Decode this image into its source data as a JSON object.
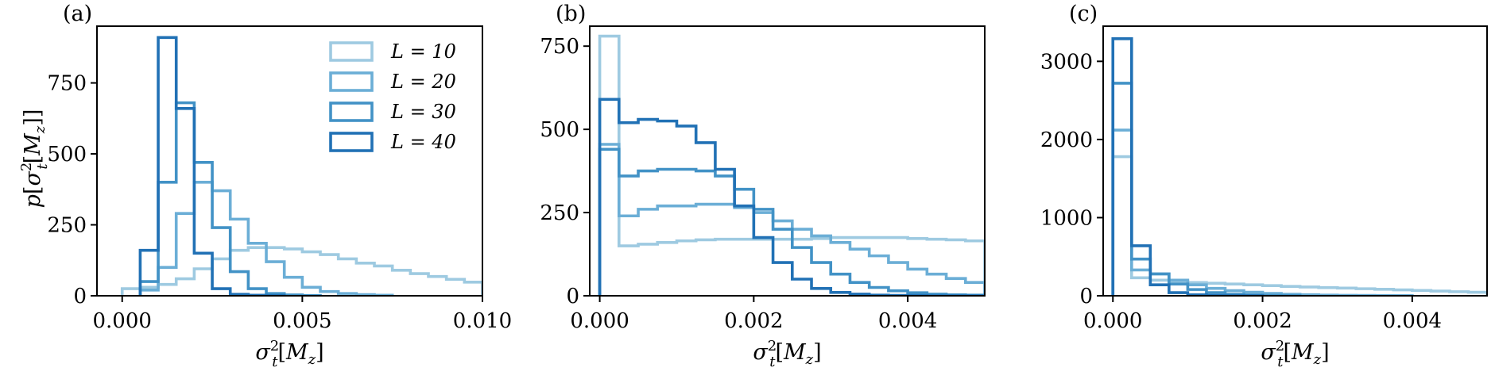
{
  "chart_data": [
    {
      "type": "histogram-step",
      "panel_label": "(a)",
      "xlabel": "σ_t²[M_z]",
      "ylabel": "p[σ_t²[M_z]]",
      "xlim": [
        -0.0007,
        0.01
      ],
      "ylim": [
        0,
        950
      ],
      "xticks": [
        0.0,
        0.005,
        0.01
      ],
      "xtick_labels": [
        "0.000",
        "0.005",
        "0.010"
      ],
      "yticks": [
        0,
        250,
        500,
        750
      ],
      "ytick_labels": [
        "0",
        "250",
        "500",
        "750"
      ],
      "legend": {
        "placement": "upper-right",
        "entries": [
          "L = 10",
          "L = 20",
          "L = 30",
          "L = 40"
        ]
      },
      "series": [
        {
          "name": "L = 10",
          "color": "#9ecae1",
          "edges": [
            0.0,
            0.0005,
            0.001,
            0.0015,
            0.002,
            0.0025,
            0.003,
            0.0035,
            0.004,
            0.0045,
            0.005,
            0.0055,
            0.006,
            0.0065,
            0.007,
            0.0075,
            0.008,
            0.0085,
            0.009,
            0.0095,
            0.01
          ],
          "values": [
            25,
            30,
            40,
            60,
            95,
            130,
            160,
            170,
            170,
            165,
            155,
            145,
            130,
            115,
            105,
            90,
            78,
            68,
            58,
            48
          ]
        },
        {
          "name": "L = 20",
          "color": "#6baed6",
          "edges": [
            0.0005,
            0.001,
            0.0015,
            0.002,
            0.0025,
            0.003,
            0.0035,
            0.004,
            0.0045,
            0.005,
            0.0055,
            0.006,
            0.0065,
            0.007,
            0.0075
          ],
          "values": [
            20,
            100,
            290,
            400,
            370,
            270,
            185,
            120,
            65,
            30,
            15,
            8,
            4,
            2
          ]
        },
        {
          "name": "L = 30",
          "color": "#4292c6",
          "edges": [
            0.0005,
            0.001,
            0.0015,
            0.002,
            0.0025,
            0.003,
            0.0035,
            0.004,
            0.0045,
            0.005,
            0.0055
          ],
          "values": [
            50,
            400,
            680,
            470,
            240,
            85,
            25,
            8,
            3,
            1
          ]
        },
        {
          "name": "L = 40",
          "color": "#2171b5",
          "edges": [
            0.0005,
            0.001,
            0.0015,
            0.002,
            0.0025,
            0.003,
            0.0035,
            0.004,
            0.0045
          ],
          "values": [
            160,
            910,
            660,
            150,
            25,
            5,
            2,
            1
          ]
        }
      ]
    },
    {
      "type": "histogram-step",
      "panel_label": "(b)",
      "xlabel": "σ_t²[M_z]",
      "ylabel": "",
      "xlim": [
        -0.00013,
        0.005
      ],
      "ylim": [
        0,
        810
      ],
      "xticks": [
        0.0,
        0.002,
        0.004
      ],
      "xtick_labels": [
        "0.000",
        "0.002",
        "0.004"
      ],
      "yticks": [
        0,
        250,
        500,
        750
      ],
      "ytick_labels": [
        "0",
        "250",
        "500",
        "750"
      ],
      "series": [
        {
          "name": "L = 10",
          "color": "#9ecae1",
          "edges": [
            0.0,
            0.00025,
            0.0005,
            0.00075,
            0.001,
            0.00125,
            0.0015,
            0.00175,
            0.002,
            0.00225,
            0.0025,
            0.00275,
            0.003,
            0.00325,
            0.0035,
            0.00375,
            0.004,
            0.00425,
            0.0045,
            0.00475,
            0.005
          ],
          "values": [
            780,
            150,
            155,
            160,
            165,
            168,
            170,
            170,
            170,
            170,
            170,
            172,
            175,
            175,
            175,
            175,
            172,
            170,
            168,
            165
          ]
        },
        {
          "name": "L = 20",
          "color": "#6baed6",
          "edges": [
            0.0,
            0.00025,
            0.0005,
            0.00075,
            0.001,
            0.00125,
            0.0015,
            0.00175,
            0.002,
            0.00225,
            0.0025,
            0.00275,
            0.003,
            0.00325,
            0.0035,
            0.00375,
            0.004,
            0.00425,
            0.0045,
            0.00475,
            0.005
          ],
          "values": [
            455,
            240,
            260,
            270,
            270,
            275,
            275,
            265,
            250,
            225,
            200,
            180,
            160,
            140,
            120,
            100,
            80,
            65,
            52,
            40
          ]
        },
        {
          "name": "L = 30",
          "color": "#4292c6",
          "edges": [
            0.0,
            0.00025,
            0.0005,
            0.00075,
            0.001,
            0.00125,
            0.0015,
            0.00175,
            0.002,
            0.00225,
            0.0025,
            0.00275,
            0.003,
            0.00325,
            0.0035,
            0.00375,
            0.004,
            0.00425,
            0.0045,
            0.00475,
            0.005
          ],
          "values": [
            440,
            360,
            375,
            380,
            380,
            375,
            360,
            320,
            260,
            200,
            145,
            100,
            65,
            40,
            25,
            15,
            9,
            5,
            3,
            2
          ]
        },
        {
          "name": "L = 40",
          "color": "#2171b5",
          "edges": [
            0.0,
            0.00025,
            0.0005,
            0.00075,
            0.001,
            0.00125,
            0.0015,
            0.00175,
            0.002,
            0.00225,
            0.0025,
            0.00275,
            0.003,
            0.00325,
            0.0035,
            0.00375,
            0.004,
            0.00425,
            0.0045,
            0.00475,
            0.005
          ],
          "values": [
            590,
            520,
            530,
            525,
            510,
            460,
            380,
            270,
            175,
            100,
            50,
            22,
            10,
            5,
            2,
            1,
            1,
            0,
            0,
            0
          ]
        }
      ]
    },
    {
      "type": "histogram-step",
      "panel_label": "(c)",
      "xlabel": "σ_t²[M_z]",
      "ylabel": "",
      "xlim": [
        -0.00013,
        0.005
      ],
      "ylim": [
        0,
        3450
      ],
      "xticks": [
        0.0,
        0.002,
        0.004
      ],
      "xtick_labels": [
        "0.000",
        "0.002",
        "0.004"
      ],
      "yticks": [
        0,
        1000,
        2000,
        3000
      ],
      "ytick_labels": [
        "0",
        "1000",
        "2000",
        "3000"
      ],
      "series": [
        {
          "name": "L = 10",
          "color": "#9ecae1",
          "edges": [
            0.0,
            0.00025,
            0.0005,
            0.00075,
            0.001,
            0.00125,
            0.0015,
            0.00175,
            0.002,
            0.00225,
            0.0025,
            0.00275,
            0.003,
            0.00325,
            0.0035,
            0.00375,
            0.004,
            0.00425,
            0.0045,
            0.00475,
            0.005
          ],
          "values": [
            1780,
            230,
            200,
            185,
            170,
            160,
            150,
            140,
            130,
            120,
            112,
            105,
            98,
            90,
            83,
            75,
            68,
            60,
            52,
            45
          ]
        },
        {
          "name": "L = 20",
          "color": "#6baed6",
          "edges": [
            0.0,
            0.00025,
            0.0005,
            0.00075,
            0.001,
            0.00125,
            0.0015,
            0.00175,
            0.002,
            0.00225,
            0.0025,
            0.00275,
            0.003,
            0.00325,
            0.0035,
            0.00375,
            0.004
          ],
          "values": [
            2120,
            330,
            280,
            200,
            140,
            95,
            65,
            45,
            30,
            20,
            13,
            9,
            6,
            4,
            3,
            2
          ]
        },
        {
          "name": "L = 30",
          "color": "#4292c6",
          "edges": [
            0.0,
            0.00025,
            0.0005,
            0.00075,
            0.001,
            0.00125,
            0.0015,
            0.00175,
            0.002,
            0.00225,
            0.0025
          ],
          "values": [
            2720,
            470,
            280,
            150,
            80,
            40,
            20,
            10,
            5,
            2
          ]
        },
        {
          "name": "L = 40",
          "color": "#2171b5",
          "edges": [
            0.0,
            0.00025,
            0.0005,
            0.00075,
            0.001,
            0.00125,
            0.0015,
            0.00175,
            0.002
          ],
          "values": [
            3290,
            640,
            140,
            40,
            12,
            4,
            2,
            1
          ]
        }
      ]
    }
  ]
}
